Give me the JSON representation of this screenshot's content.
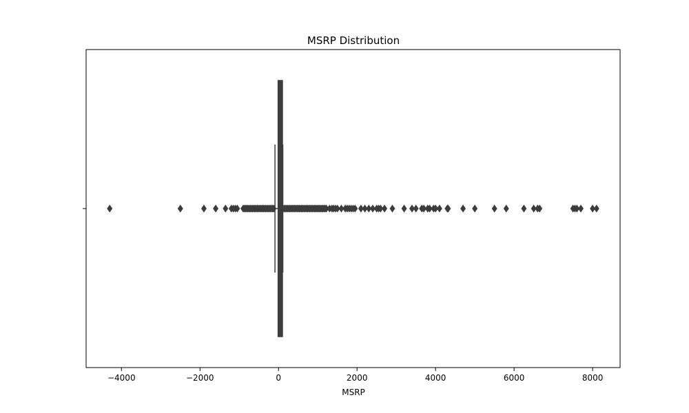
{
  "chart_data": {
    "type": "boxplot",
    "title": "MSRP Distribution",
    "xlabel": "MSRP",
    "ylabel": "",
    "xlim": [
      -4900,
      8700
    ],
    "xticks": [
      -4000,
      -2000,
      0,
      2000,
      4000,
      6000,
      8000
    ],
    "xtick_labels": [
      "−4000",
      "−2000",
      "0",
      "2000",
      "4000",
      "6000",
      "8000"
    ],
    "grid": false,
    "colors": {
      "box": "#3c3c3c",
      "outline": "#000000",
      "background": "#ffffff"
    },
    "box": {
      "whisker_low": -90,
      "q1": -10,
      "median": 20,
      "q3": 100,
      "whisker_high": 110
    },
    "outliers": [
      -4300,
      -2500,
      -1900,
      -1600,
      -1350,
      -1200,
      -1150,
      -1100,
      -1050,
      -900,
      -870,
      -840,
      -810,
      -780,
      -750,
      -720,
      -690,
      -660,
      -630,
      -600,
      -570,
      -540,
      -510,
      -480,
      -450,
      -420,
      -390,
      -360,
      -330,
      -300,
      -270,
      -240,
      -210,
      -180,
      -150,
      -120,
      140,
      170,
      200,
      230,
      260,
      290,
      320,
      350,
      380,
      410,
      440,
      470,
      500,
      530,
      560,
      590,
      620,
      650,
      680,
      710,
      740,
      770,
      800,
      830,
      860,
      890,
      920,
      950,
      980,
      1010,
      1040,
      1070,
      1100,
      1130,
      1160,
      1190,
      1220,
      1300,
      1360,
      1400,
      1450,
      1500,
      1600,
      1700,
      1750,
      1800,
      1850,
      1900,
      1950,
      2100,
      2200,
      2300,
      2400,
      2500,
      2550,
      2600,
      2700,
      2900,
      3200,
      3400,
      3500,
      3650,
      3700,
      3800,
      3850,
      3950,
      4000,
      4100,
      4300,
      4320,
      4700,
      5000,
      5500,
      5800,
      6250,
      6500,
      6600,
      6650,
      7500,
      7550,
      7600,
      7700,
      8000,
      8100
    ]
  }
}
